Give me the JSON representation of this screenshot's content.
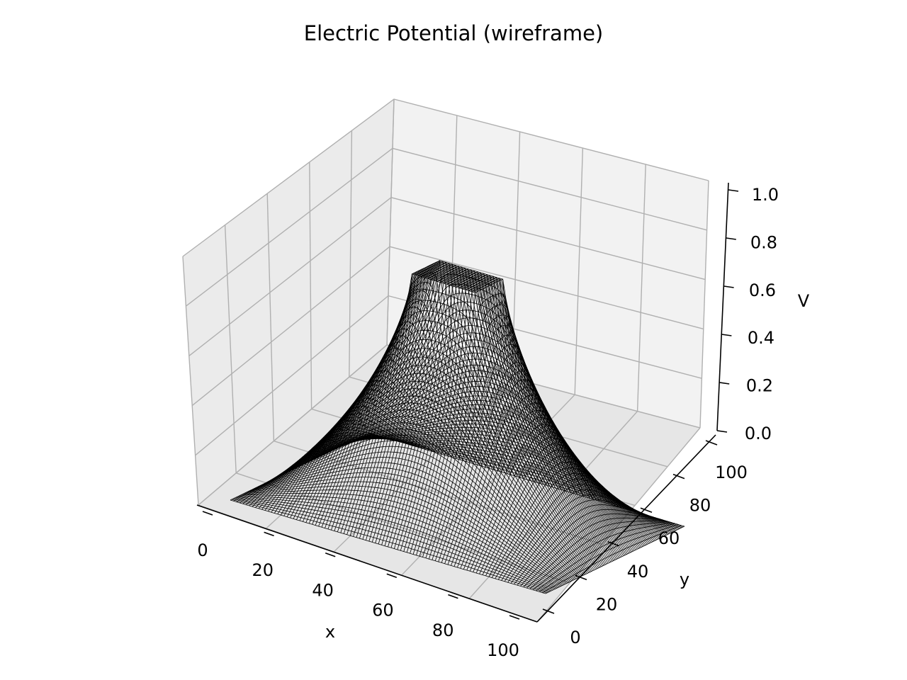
{
  "chart_data": {
    "type": "wireframe",
    "title": "Electric Potential (wireframe)",
    "xlabel": "x",
    "ylabel": "y",
    "zlabel": "V",
    "xlim": [
      0,
      100
    ],
    "ylim": [
      0,
      100
    ],
    "zlim": [
      0,
      1
    ],
    "xticks": [
      "0",
      "20",
      "40",
      "60",
      "80",
      "100"
    ],
    "yticks": [
      "0",
      "20",
      "40",
      "60",
      "80",
      "100"
    ],
    "zticks": [
      "0.0",
      "0.2",
      "0.4",
      "0.6",
      "0.8",
      "1.0"
    ],
    "grid": true,
    "grid_resolution": 101,
    "conductor": {
      "x": [
        40,
        60
      ],
      "y": [
        40,
        60
      ],
      "potential": 1.0
    },
    "boundary_potential": 0.0,
    "line_color": "#000000",
    "pane_colors": {
      "back": "#f2f2f2",
      "side": "#ebebeb",
      "floor": "#e6e6e6"
    }
  }
}
